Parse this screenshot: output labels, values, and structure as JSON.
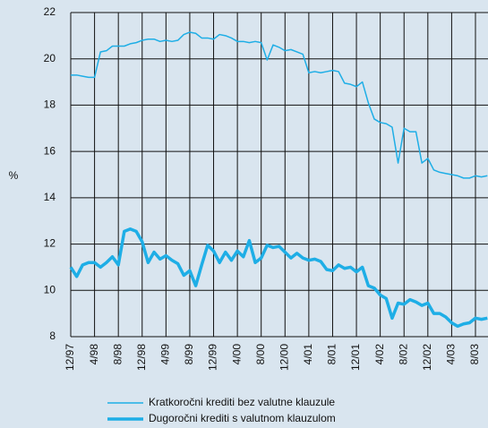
{
  "chart_data": {
    "type": "line",
    "y_label": "%",
    "categories": [
      "12/97",
      null,
      null,
      null,
      "4/98",
      null,
      null,
      null,
      "8/98",
      null,
      null,
      null,
      "12/98",
      null,
      null,
      null,
      "4/99",
      null,
      null,
      null,
      "8/99",
      null,
      null,
      null,
      "12/99",
      null,
      null,
      null,
      "4/00",
      null,
      null,
      null,
      "8/00",
      null,
      null,
      null,
      "12/00",
      null,
      null,
      null,
      "4/01",
      null,
      null,
      null,
      "8/01",
      null,
      null,
      null,
      "12/01",
      null,
      null,
      null,
      "4/02",
      null,
      null,
      null,
      "8/02",
      null,
      null,
      null,
      "12/02",
      null,
      null,
      null,
      "4/03",
      null,
      null,
      null,
      "8/03",
      null,
      null
    ],
    "series": [
      {
        "name": "Kratkoročni krediti bez valutne klauzule",
        "color": "#1eaee6",
        "width": 1.5,
        "values": [
          19.3,
          19.3,
          19.25,
          19.2,
          19.2,
          20.3,
          20.35,
          20.55,
          20.55,
          20.55,
          20.65,
          20.7,
          20.8,
          20.85,
          20.85,
          20.75,
          20.8,
          20.75,
          20.8,
          21.05,
          21.15,
          21.1,
          20.9,
          20.9,
          20.85,
          21.05,
          21.0,
          20.9,
          20.75,
          20.75,
          20.7,
          20.75,
          20.7,
          19.95,
          20.6,
          20.5,
          20.35,
          20.4,
          20.3,
          20.2,
          19.4,
          19.45,
          19.4,
          19.45,
          19.5,
          19.45,
          18.95,
          18.9,
          18.8,
          19.0,
          18.1,
          17.4,
          17.25,
          17.2,
          17.05,
          15.5,
          17.0,
          16.85,
          16.85,
          15.5,
          15.7,
          15.2,
          15.1,
          15.05,
          15.0,
          14.95,
          14.85,
          14.85,
          14.95,
          14.9,
          14.95
        ]
      },
      {
        "name": "Dugoročni krediti s valutnom klauzulom",
        "color": "#1eaee6",
        "width": 3.5,
        "values": [
          11.0,
          10.6,
          11.1,
          11.2,
          11.2,
          11.0,
          11.2,
          11.45,
          11.1,
          12.55,
          12.65,
          12.55,
          12.1,
          11.2,
          11.65,
          11.35,
          11.5,
          11.3,
          11.15,
          10.65,
          10.85,
          10.2,
          11.1,
          11.95,
          11.7,
          11.2,
          11.65,
          11.3,
          11.7,
          11.45,
          12.15,
          11.2,
          11.4,
          11.95,
          11.85,
          11.9,
          11.65,
          11.4,
          11.6,
          11.4,
          11.3,
          11.35,
          11.25,
          10.9,
          10.85,
          11.1,
          10.95,
          11.0,
          10.8,
          11.0,
          10.2,
          10.1,
          9.8,
          9.65,
          8.8,
          9.45,
          9.4,
          9.6,
          9.5,
          9.35,
          9.45,
          9.0,
          9.0,
          8.85,
          8.6,
          8.45,
          8.55,
          8.6,
          8.8,
          8.75,
          8.8
        ]
      }
    ],
    "ylim": [
      8,
      22
    ],
    "yticks": [
      8,
      10,
      12,
      14,
      16,
      18,
      20,
      22
    ],
    "grid": true,
    "legend": "bottom"
  }
}
